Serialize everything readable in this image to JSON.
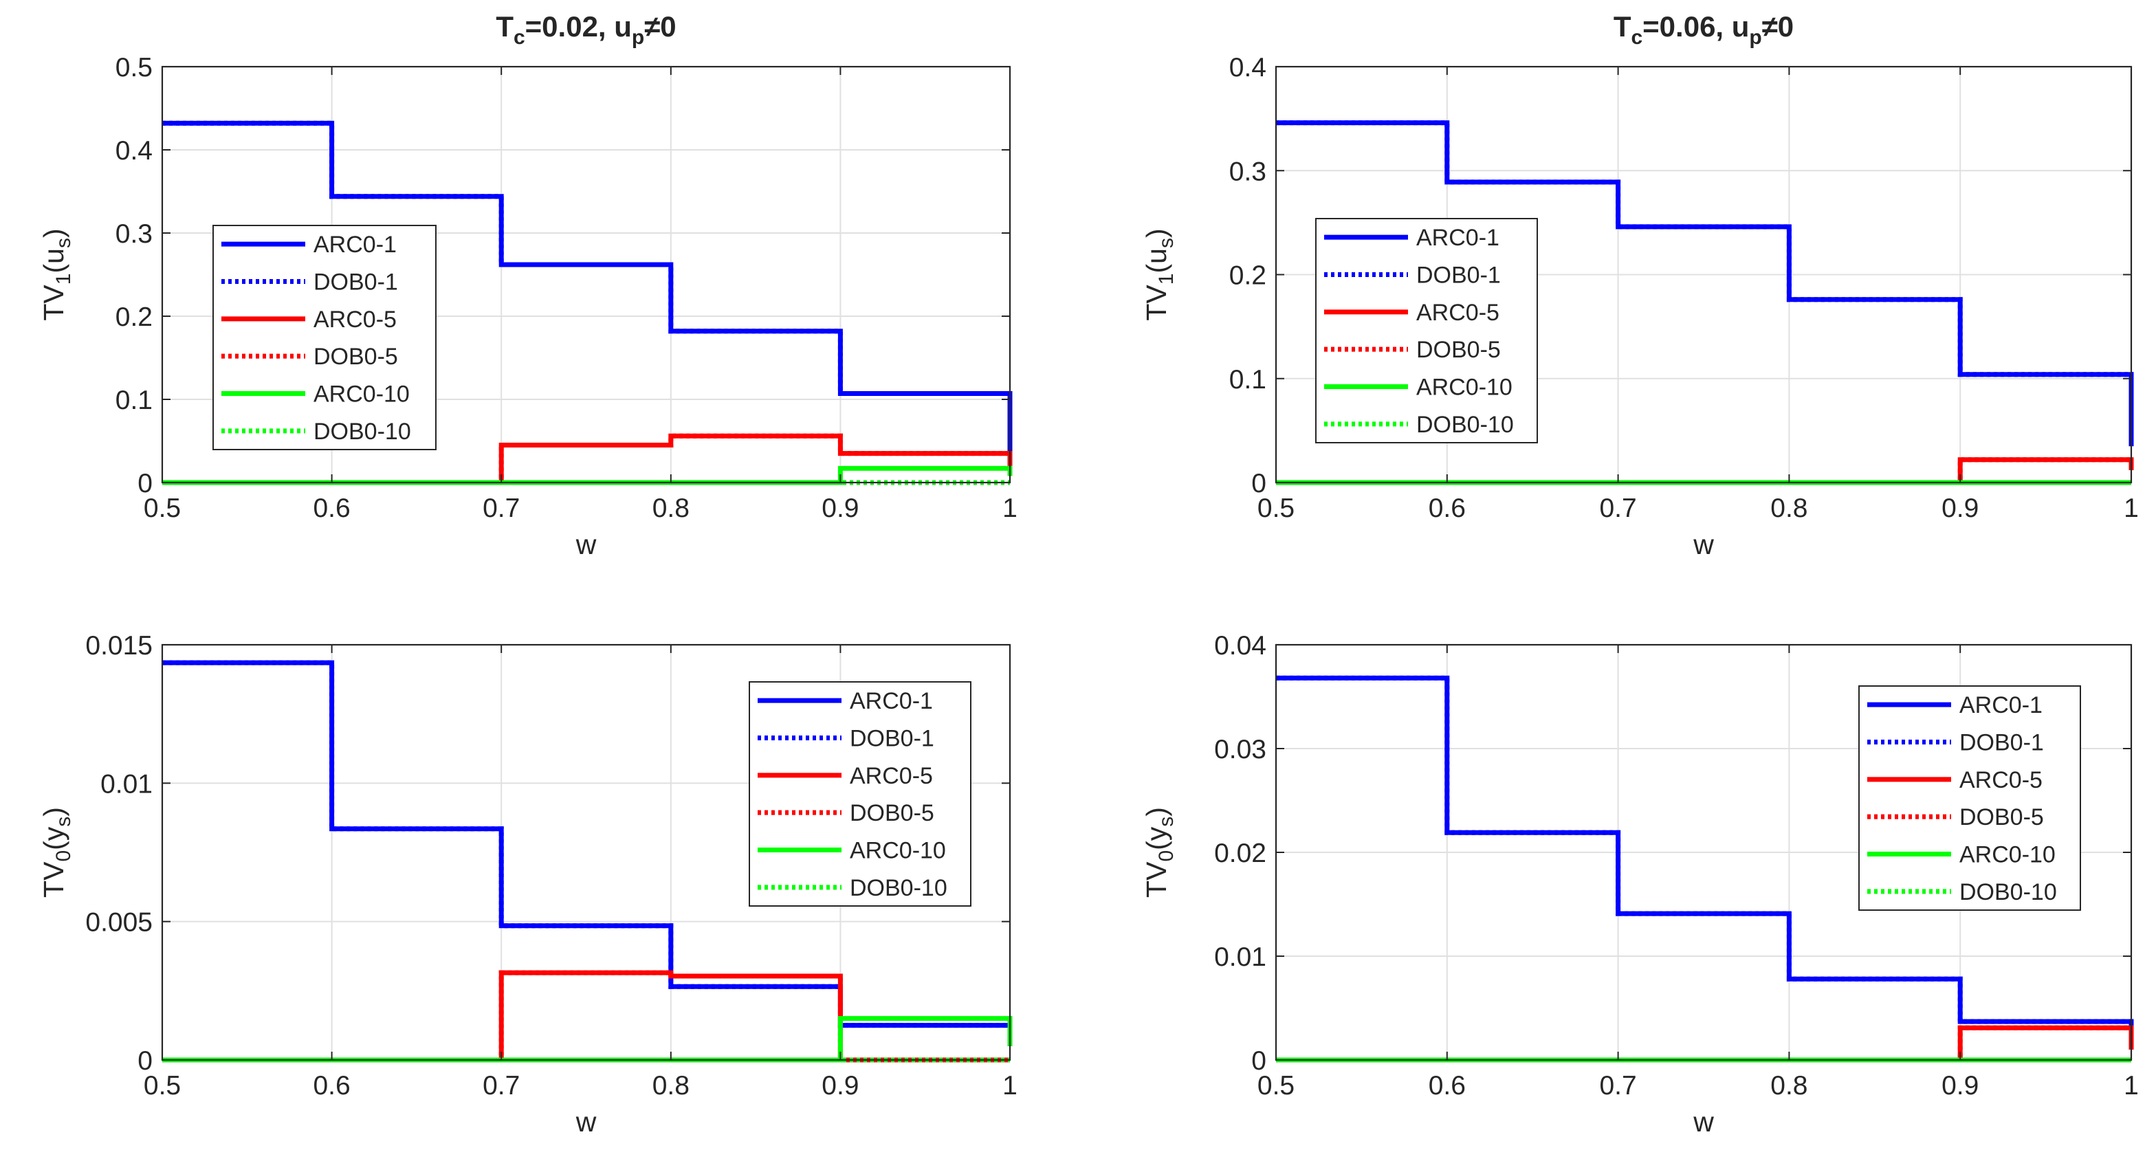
{
  "chart_data": [
    {
      "type": "line",
      "title": "T_c=0.02, u_p≠0",
      "title_parts": {
        "a": "T",
        "a_sub": "c",
        "b": "=0.02, u",
        "b_sub": "p",
        "c": "≠0"
      },
      "xlabel": "w",
      "ylabel_parts": {
        "main": "TV",
        "sub1": "1",
        "mid": "(u",
        "sub2": "s",
        "end": ")"
      },
      "xlim": [
        0.5,
        1.0
      ],
      "ylim": [
        0,
        0.5
      ],
      "xticks": [
        "0.5",
        "0.6",
        "0.7",
        "0.8",
        "0.9",
        "1"
      ],
      "yticks": [
        "0",
        "0.1",
        "0.2",
        "0.3",
        "0.4",
        "0.5"
      ],
      "legend_position": "left",
      "grid": true,
      "x": [
        0.5,
        0.6,
        0.7,
        0.8,
        0.9,
        1.0
      ],
      "series": [
        {
          "name": "ARC0-1",
          "color": "#0000ff",
          "style": "solid",
          "values": [
            0.432,
            0.344,
            0.262,
            0.182,
            0.107,
            0.03
          ]
        },
        {
          "name": "DOB0-1",
          "color": "#0000ff",
          "style": "dotted",
          "values": [
            0.432,
            0.344,
            0.262,
            0.182,
            0.107,
            0.03
          ]
        },
        {
          "name": "ARC0-5",
          "color": "#ff0000",
          "style": "solid",
          "values": [
            0,
            0,
            0.045,
            0.056,
            0.035,
            0.02
          ]
        },
        {
          "name": "DOB0-5",
          "color": "#ff0000",
          "style": "dotted",
          "values": [
            0,
            0,
            0.045,
            0.056,
            0.035,
            0.02
          ]
        },
        {
          "name": "ARC0-10",
          "color": "#00ff00",
          "style": "solid",
          "values": [
            0,
            0,
            0,
            0,
            0.017,
            0.008
          ]
        },
        {
          "name": "DOB0-10",
          "color": "#00ff00",
          "style": "dotted",
          "values": [
            0,
            0,
            0,
            0,
            0,
            0
          ]
        }
      ]
    },
    {
      "type": "line",
      "title": "T_c=0.06, u_p≠0",
      "title_parts": {
        "a": "T",
        "a_sub": "c",
        "b": "=0.06, u",
        "b_sub": "p",
        "c": "≠0"
      },
      "xlabel": "w",
      "ylabel_parts": {
        "main": "TV",
        "sub1": "1",
        "mid": "(u",
        "sub2": "s",
        "end": ")"
      },
      "xlim": [
        0.5,
        1.0
      ],
      "ylim": [
        0,
        0.4
      ],
      "xticks": [
        "0.5",
        "0.6",
        "0.7",
        "0.8",
        "0.9",
        "1"
      ],
      "yticks": [
        "0",
        "0.1",
        "0.2",
        "0.3",
        "0.4"
      ],
      "legend_position": "left",
      "grid": true,
      "x": [
        0.5,
        0.6,
        0.7,
        0.8,
        0.9,
        1.0
      ],
      "series": [
        {
          "name": "ARC0-1",
          "color": "#0000ff",
          "style": "solid",
          "values": [
            0.346,
            0.289,
            0.246,
            0.176,
            0.104,
            0.035
          ]
        },
        {
          "name": "DOB0-1",
          "color": "#0000ff",
          "style": "dotted",
          "values": [
            0.346,
            0.289,
            0.246,
            0.176,
            0.104,
            0.035
          ]
        },
        {
          "name": "ARC0-5",
          "color": "#ff0000",
          "style": "solid",
          "values": [
            0,
            0,
            0,
            0,
            0.022,
            0.012
          ]
        },
        {
          "name": "DOB0-5",
          "color": "#ff0000",
          "style": "dotted",
          "values": [
            0,
            0,
            0,
            0,
            0.022,
            0.012
          ]
        },
        {
          "name": "ARC0-10",
          "color": "#00ff00",
          "style": "solid",
          "values": [
            0,
            0,
            0,
            0,
            0,
            0
          ]
        },
        {
          "name": "DOB0-10",
          "color": "#00ff00",
          "style": "dotted",
          "values": [
            0,
            0,
            0,
            0,
            0,
            0
          ]
        }
      ]
    },
    {
      "type": "line",
      "title": "",
      "xlabel": "w",
      "ylabel_parts": {
        "main": "TV",
        "sub1": "0",
        "mid": "(y",
        "sub2": "s",
        "end": ")"
      },
      "xlim": [
        0.5,
        1.0
      ],
      "ylim": [
        0,
        0.015
      ],
      "xticks": [
        "0.5",
        "0.6",
        "0.7",
        "0.8",
        "0.9",
        "1"
      ],
      "yticks": [
        "0",
        "0.005",
        "0.01",
        "0.015"
      ],
      "legend_position": "right",
      "grid": true,
      "x": [
        0.5,
        0.6,
        0.7,
        0.8,
        0.9,
        1.0
      ],
      "series": [
        {
          "name": "ARC0-1",
          "color": "#0000ff",
          "style": "solid",
          "values": [
            0.01435,
            0.00835,
            0.00485,
            0.00265,
            0.00125,
            0.0005
          ]
        },
        {
          "name": "DOB0-1",
          "color": "#0000ff",
          "style": "dotted",
          "values": [
            0.01435,
            0.00835,
            0.00485,
            0.00265,
            0.00125,
            0.0005
          ]
        },
        {
          "name": "ARC0-5",
          "color": "#ff0000",
          "style": "solid",
          "values": [
            0,
            0,
            0.00315,
            0.00303,
            0.0,
            0.0
          ]
        },
        {
          "name": "DOB0-5",
          "color": "#ff0000",
          "style": "dotted",
          "values": [
            0,
            0,
            0.00315,
            0.00303,
            0.0,
            0.0
          ]
        },
        {
          "name": "ARC0-10",
          "color": "#00ff00",
          "style": "solid",
          "values": [
            0,
            0,
            0,
            0,
            0.0015,
            0.0005
          ]
        },
        {
          "name": "DOB0-10",
          "color": "#00ff00",
          "style": "dotted",
          "values": [
            0,
            0,
            0,
            0,
            0,
            0
          ]
        }
      ]
    },
    {
      "type": "line",
      "title": "",
      "xlabel": "w",
      "ylabel_parts": {
        "main": "TV",
        "sub1": "0",
        "mid": "(y",
        "sub2": "s",
        "end": ")"
      },
      "xlim": [
        0.5,
        1.0
      ],
      "ylim": [
        0,
        0.04
      ],
      "xticks": [
        "0.5",
        "0.6",
        "0.7",
        "0.8",
        "0.9",
        "1"
      ],
      "yticks": [
        "0",
        "0.01",
        "0.02",
        "0.03",
        "0.04"
      ],
      "legend_position": "right",
      "grid": true,
      "x": [
        0.5,
        0.6,
        0.7,
        0.8,
        0.9,
        1.0
      ],
      "series": [
        {
          "name": "ARC0-1",
          "color": "#0000ff",
          "style": "solid",
          "values": [
            0.0368,
            0.0219,
            0.0141,
            0.0078,
            0.0037,
            0.0012
          ]
        },
        {
          "name": "DOB0-1",
          "color": "#0000ff",
          "style": "dotted",
          "values": [
            0.0368,
            0.0219,
            0.0141,
            0.0078,
            0.0037,
            0.0012
          ]
        },
        {
          "name": "ARC0-5",
          "color": "#ff0000",
          "style": "solid",
          "values": [
            0,
            0,
            0,
            0,
            0.0031,
            0.001
          ]
        },
        {
          "name": "DOB0-5",
          "color": "#ff0000",
          "style": "dotted",
          "values": [
            0,
            0,
            0,
            0,
            0.0031,
            0.001
          ]
        },
        {
          "name": "ARC0-10",
          "color": "#00ff00",
          "style": "solid",
          "values": [
            0,
            0,
            0,
            0,
            0,
            0
          ]
        },
        {
          "name": "DOB0-10",
          "color": "#00ff00",
          "style": "dotted",
          "values": [
            0,
            0,
            0,
            0,
            0,
            0
          ]
        }
      ]
    }
  ]
}
